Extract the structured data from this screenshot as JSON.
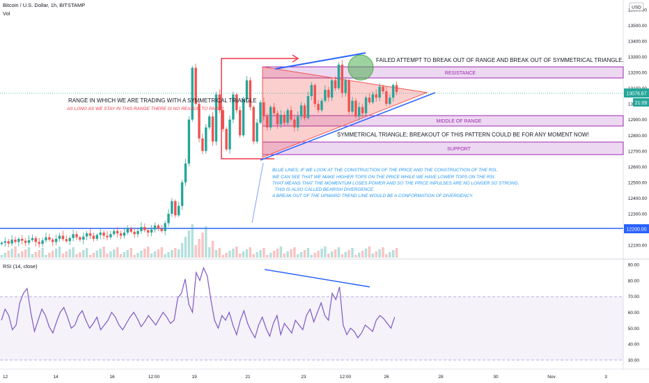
{
  "header": {
    "symbol_line": "Bitcoin / U.S. Dollar, 1h, BITSTAMP",
    "volume_label": "Vol",
    "rsi_label": "RSI (14, close)"
  },
  "price_axis": {
    "currency": "USD",
    "ticks": [
      "13600.00",
      "13500.00",
      "13400.00",
      "13300.00",
      "13200.00",
      "13100.00",
      "13000.00",
      "12900.00",
      "12800.00",
      "12700.00",
      "12600.00",
      "12500.00",
      "12400.00",
      "12300.00",
      "12200.00",
      "12100.00"
    ],
    "last_price_tag": "13076.67",
    "countdown_tag": "21:09",
    "support_line_tag": "12200.00"
  },
  "rsi_axis": {
    "ticks": [
      "90.00",
      "80.00",
      "70.00",
      "60.00",
      "50.00",
      "40.00",
      "30.00"
    ]
  },
  "time_axis": {
    "ticks": [
      "12",
      "14",
      "16",
      "12:00",
      "19",
      "21",
      "23",
      "12:00",
      "26",
      "28",
      "30",
      "Nov",
      "3"
    ]
  },
  "annotations": {
    "range_title": "RANGE IN WHICH WE ARE TRADING WITH A SYMMETRICAL TRIANGLE",
    "range_note": "AS LONG AS WE STAY IN THIS RANGE THERE IS NO REASON TO PANIC.",
    "failed_breakout": "FAILED ATTEMPT TO BREAK OUT OF RANGE AND BREAK OUT OF SYMMETRICAL TRIANGLE.",
    "resistance": "RESISTANCE",
    "middle": "MIDDLE OF RANGE",
    "support": "SUPPORT",
    "triangle_note": "SYMMETRICAL TRIANGLE; BREAKOUT OF THIS PATTERN COULD BE FOR ANY MOMENT NOW!",
    "divergence_note": [
      "BLUE LINES; IF WE LOOK AT THE CONSTRUCTION OF THE PRICE AND THE CONSTRUCTION OF THE RSI,",
      "WE CAN SEE THAT WE MAKE HIGHER TOPS ON THE PRICE WHILE WE HAVE LOWER TOPS ON THE RSI.",
      "THAT MEANS THAT THE MOMENTUM LOSES POWER AND SO THE PRICE INPULSES ARE NO LONGER SO STRONG.",
      "  THIS IS ALSO CALLED BEARISH DIVERGENCE.",
      "A BREAK OUT OF THE UPWARD TREND LINE WOULD BE A CONFORMATION OF DIVERGENCY."
    ]
  },
  "colors": {
    "up": "#26a69a",
    "down": "#ef5350",
    "blue": "#2962ff",
    "line_blue": "#1e53e5",
    "purple_text": "#9c27b0",
    "rsi": "#7e57c2",
    "red_text": "#f23645",
    "note_blue": "#2196f3",
    "green_circle": "#4caf50"
  },
  "chart_data": [
    {
      "type": "candlestick",
      "title": "Bitcoin / U.S. Dollar, 1h, BITSTAMP",
      "ylim": [
        12060,
        13650
      ],
      "x_ticks": [
        "12",
        "14",
        "16",
        "12:00",
        "19",
        "21",
        "23",
        "12:00",
        "26",
        "28",
        "30",
        "Nov",
        "3"
      ],
      "close_approx": [
        12115,
        12125,
        12110,
        12135,
        12120,
        12140,
        12128,
        12115,
        12132,
        12145,
        12120,
        12108,
        12130,
        12150,
        12135,
        12120,
        12140,
        12160,
        12138,
        12125,
        12145,
        12170,
        12150,
        12135,
        12155,
        12175,
        12160,
        12140,
        12165,
        12180,
        12160,
        12150,
        12170,
        12190,
        12175,
        12160,
        12180,
        12205,
        12185,
        12170,
        12190,
        12215,
        12195,
        12180,
        12200,
        12225,
        12205,
        12190,
        12240,
        12300,
        12380,
        12290,
        12350,
        12500,
        12620,
        12900,
        13230,
        13000,
        12780,
        12700,
        12850,
        12920,
        12760,
        13060,
        12960,
        12840,
        12710,
        12900,
        13060,
        12960,
        12800,
        13030,
        13150,
        12980,
        12760,
        12880,
        13010,
        12920,
        12850,
        12980,
        12940,
        12870,
        12930,
        12880,
        12960,
        12900,
        12850,
        12920,
        12990,
        12910,
        13050,
        13120,
        13000,
        12960,
        13020,
        13090,
        13040,
        13150,
        13100,
        13250,
        13070,
        13150,
        12950,
        13020,
        12920,
        12980,
        12940,
        13040,
        13010,
        13060,
        13040,
        13110,
        13080,
        13000,
        13040,
        13120,
        13076
      ],
      "levels": {
        "resistance": [
          13180,
          13230
        ],
        "middle": [
          12880,
          12935
        ],
        "support": [
          12695,
          12760
        ],
        "range": [
          12680,
          13230
        ],
        "horizontal": 12200
      },
      "triangle": {
        "apex": 13075,
        "upper_start": 13220,
        "lower_start": 12680
      },
      "upper_trendline": [
        13220,
        13315
      ],
      "lower_trendline": [
        12660,
        13100
      ],
      "last_price": 13076.67
    },
    {
      "type": "line",
      "title": "RSI (14, close)",
      "ylim": [
        28,
        92
      ],
      "band": [
        30,
        70
      ],
      "values": [
        55,
        62,
        58,
        49,
        52,
        66,
        72,
        75,
        60,
        48,
        55,
        62,
        58,
        51,
        47,
        54,
        60,
        63,
        57,
        50,
        52,
        58,
        61,
        55,
        50,
        53,
        57,
        49,
        52,
        55,
        60,
        57,
        52,
        49,
        53,
        57,
        60,
        56,
        51,
        54,
        58,
        55,
        52,
        56,
        60,
        57,
        53,
        55,
        69,
        72,
        81,
        65,
        60,
        85,
        80,
        88,
        83,
        68,
        55,
        50,
        58,
        55,
        60,
        52,
        46,
        55,
        61,
        53,
        48,
        44,
        52,
        57,
        50,
        45,
        53,
        58,
        46,
        53,
        50,
        47,
        55,
        52,
        49,
        58,
        62,
        54,
        60,
        66,
        58,
        55,
        72,
        68,
        76,
        52,
        46,
        50,
        48,
        44,
        47,
        52,
        50,
        48,
        55,
        58,
        56,
        53,
        50,
        57
      ],
      "divergence_line": [
        87,
        77
      ]
    }
  ]
}
